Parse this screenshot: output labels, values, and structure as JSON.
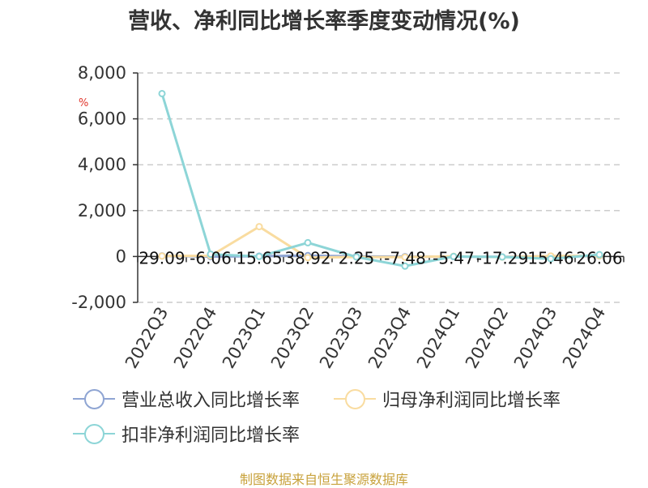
{
  "title": "营收、净利同比增长率季度变动情况(%)",
  "unit_label": "%",
  "source": "制图数据来自恒生聚源数据库",
  "chart_data": {
    "type": "line",
    "title": "营收、净利同比增长率季度变动情况(%)",
    "xlabel": "",
    "ylabel": "%",
    "categories": [
      "2022Q3",
      "2022Q4",
      "2023Q1",
      "2023Q2",
      "2023Q3",
      "2023Q4",
      "2024Q1",
      "2024Q2",
      "2024Q3",
      "2024Q4"
    ],
    "ylim": [
      -2000,
      8000
    ],
    "yticks": [
      -2000,
      0,
      2000,
      4000,
      6000,
      8000
    ],
    "ytick_labels": [
      "-2,000",
      "0",
      "2,000",
      "4,000",
      "6,000",
      "8,000"
    ],
    "grid": true,
    "legend_position": "bottom",
    "data_labels": [
      "29.09",
      "-6.06",
      "15.65",
      "38.92",
      "2.25",
      "-7.48",
      "-5.47",
      "-17.29",
      "15.46",
      "26.06"
    ],
    "series": [
      {
        "name": "营业总收入同比增长率",
        "color": "#8fa5d3",
        "values": [
          29.09,
          -6.06,
          15.65,
          38.92,
          2.25,
          -7.48,
          -5.47,
          -17.29,
          15.46,
          26.06
        ]
      },
      {
        "name": "归母净利润同比增长率",
        "color": "#f9dca0",
        "values": [
          20,
          30,
          1300,
          -50,
          -20,
          -30,
          10,
          -30,
          20,
          30
        ]
      },
      {
        "name": "扣非净利润同比增长率",
        "color": "#8dd5d7",
        "values": [
          7100,
          100,
          0,
          600,
          -20,
          -420,
          0,
          -20,
          -100,
          80
        ]
      }
    ]
  }
}
